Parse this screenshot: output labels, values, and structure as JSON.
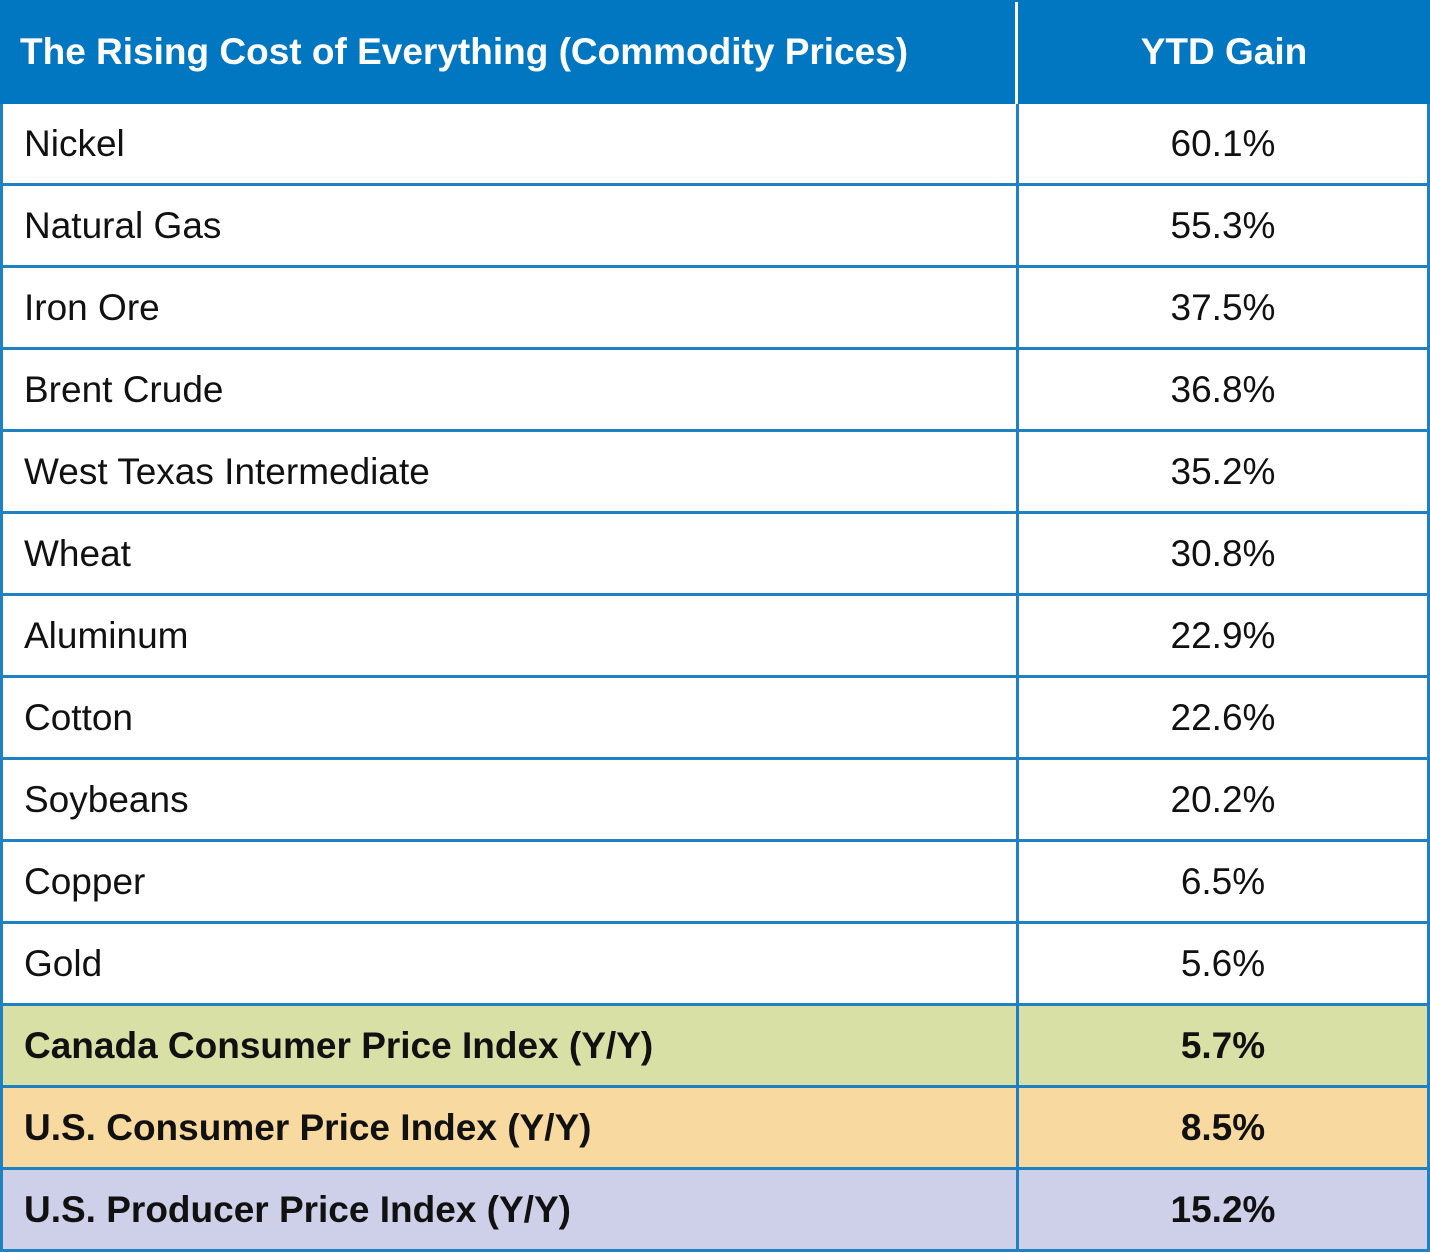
{
  "chart_data": {
    "type": "table",
    "columns": [
      "The Rising Cost of Everything (Commodity Prices)",
      "YTD Gain"
    ],
    "rows": [
      {
        "label": "Nickel",
        "value": "60.1%",
        "bold": false,
        "bg": "#ffffff"
      },
      {
        "label": "Natural Gas",
        "value": "55.3%",
        "bold": false,
        "bg": "#ffffff"
      },
      {
        "label": "Iron Ore",
        "value": "37.5%",
        "bold": false,
        "bg": "#ffffff"
      },
      {
        "label": "Brent Crude",
        "value": "36.8%",
        "bold": false,
        "bg": "#ffffff"
      },
      {
        "label": "West Texas Intermediate",
        "value": "35.2%",
        "bold": false,
        "bg": "#ffffff"
      },
      {
        "label": "Wheat",
        "value": "30.8%",
        "bold": false,
        "bg": "#ffffff"
      },
      {
        "label": "Aluminum",
        "value": "22.9%",
        "bold": false,
        "bg": "#ffffff"
      },
      {
        "label": "Cotton",
        "value": "22.6%",
        "bold": false,
        "bg": "#ffffff"
      },
      {
        "label": "Soybeans",
        "value": "20.2%",
        "bold": false,
        "bg": "#ffffff"
      },
      {
        "label": "Copper",
        "value": "6.5%",
        "bold": false,
        "bg": "#ffffff"
      },
      {
        "label": "Gold",
        "value": "5.6%",
        "bold": false,
        "bg": "#ffffff"
      },
      {
        "label": "Canada Consumer Price Index (Y/Y)",
        "value": "5.7%",
        "bold": true,
        "bg": "#d9e0a5"
      },
      {
        "label": "U.S. Consumer Price Index (Y/Y)",
        "value": "8.5%",
        "bold": true,
        "bg": "#f8d9a0"
      },
      {
        "label": "U.S. Producer Price Index (Y/Y)",
        "value": "15.2%",
        "bold": true,
        "bg": "#cdd0e8"
      }
    ]
  },
  "colors": {
    "header_bg": "#0077c0",
    "grid_line": "#1f80c2",
    "header_text": "#ffffff",
    "body_text": "#111111"
  }
}
